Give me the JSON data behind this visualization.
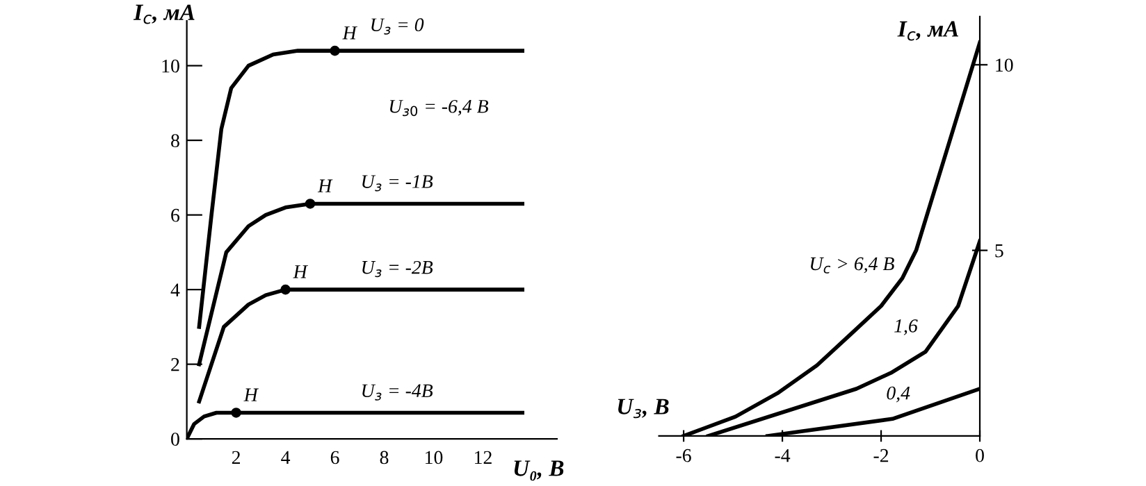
{
  "chart_data": [
    {
      "type": "line",
      "xlabel": "U₀, В",
      "ylabel": "I$_{с}$, мА",
      "xlim": [
        0,
        15
      ],
      "ylim": [
        0,
        11.2
      ],
      "xticks": [
        2,
        4,
        6,
        8,
        10,
        12
      ],
      "yticks": [
        0,
        2,
        4,
        6,
        8,
        10
      ],
      "grid": false,
      "legend": false,
      "series": [
        {
          "name": "U$_{з}$ = 0",
          "color": "#000000",
          "x": [
            0.5,
            1.0,
            1.4,
            1.8,
            2.5,
            3.5,
            4.5,
            6,
            13.6
          ],
          "values": [
            3.0,
            6.0,
            8.3,
            9.4,
            10.0,
            10.3,
            10.4,
            10.4,
            10.4
          ]
        },
        {
          "name": "U$_{з}$ = -1В",
          "color": "#000000",
          "x": [
            0.5,
            1.6,
            2.5,
            3.2,
            4,
            5,
            13.6
          ],
          "values": [
            2.0,
            5.0,
            5.7,
            6.0,
            6.2,
            6.3,
            6.3
          ]
        },
        {
          "name": "U$_{з}$ = -2В",
          "color": "#000000",
          "x": [
            0.5,
            1.5,
            2.5,
            3.2,
            4,
            13.6
          ],
          "values": [
            1.0,
            3.0,
            3.6,
            3.85,
            4.0,
            4.0
          ]
        },
        {
          "name": "U$_{з}$ = -4В",
          "color": "#000000",
          "x": [
            0,
            0.3,
            0.7,
            1.2,
            2,
            13.6
          ],
          "values": [
            0,
            0.4,
            0.6,
            0.7,
            0.7,
            0.7
          ]
        },
        {
          "type": "scatter",
          "color": "#000000",
          "marker": "circle",
          "x": [
            6,
            5,
            4,
            2
          ],
          "values": [
            10.4,
            6.3,
            4.0,
            0.7
          ]
        }
      ],
      "annotations": [
        {
          "text": "H",
          "x": 6,
          "y": 10.4
        },
        {
          "text": "H",
          "x": 5,
          "y": 6.3
        },
        {
          "text": "H",
          "x": 4,
          "y": 4.0
        },
        {
          "text": "H",
          "x": 2,
          "y": 0.7
        },
        "U$_{з0}$ = -6,4 В"
      ]
    },
    {
      "type": "line",
      "xlabel": "U$_{з}$, В",
      "ylabel": "I$_{с}$, мА",
      "xlim": [
        -6.5,
        0
      ],
      "ylim": [
        0,
        11.3
      ],
      "xticks": [
        {
          "value": -6,
          "label": "-6"
        },
        {
          "value": -4,
          "label": "-4"
        },
        {
          "value": -2,
          "label": "-2"
        },
        {
          "value": 0,
          "label": "0"
        }
      ],
      "yticks": [
        5,
        10
      ],
      "grid": false,
      "legend": false,
      "series": [
        {
          "name": "U$_{с}$ > 6,4 В",
          "color": "#000000",
          "x": [
            -6,
            -4.95,
            -4.1,
            -3.3,
            -2.6,
            -2.0,
            -1.57,
            -1.29,
            0
          ],
          "values": [
            0,
            0.52,
            1.15,
            1.9,
            2.76,
            3.5,
            4.25,
            5.0,
            10.6
          ]
        },
        {
          "name": "1,6",
          "color": "#000000",
          "x": [
            -5.5,
            -2.5,
            -1.8,
            -1.1,
            -0.44,
            0
          ],
          "values": [
            0,
            1.27,
            1.7,
            2.27,
            3.5,
            5.25
          ]
        },
        {
          "name": "0,4",
          "color": "#000000",
          "x": [
            -4.3,
            -1.77,
            0
          ],
          "values": [
            0,
            0.46,
            1.27
          ]
        }
      ]
    }
  ]
}
